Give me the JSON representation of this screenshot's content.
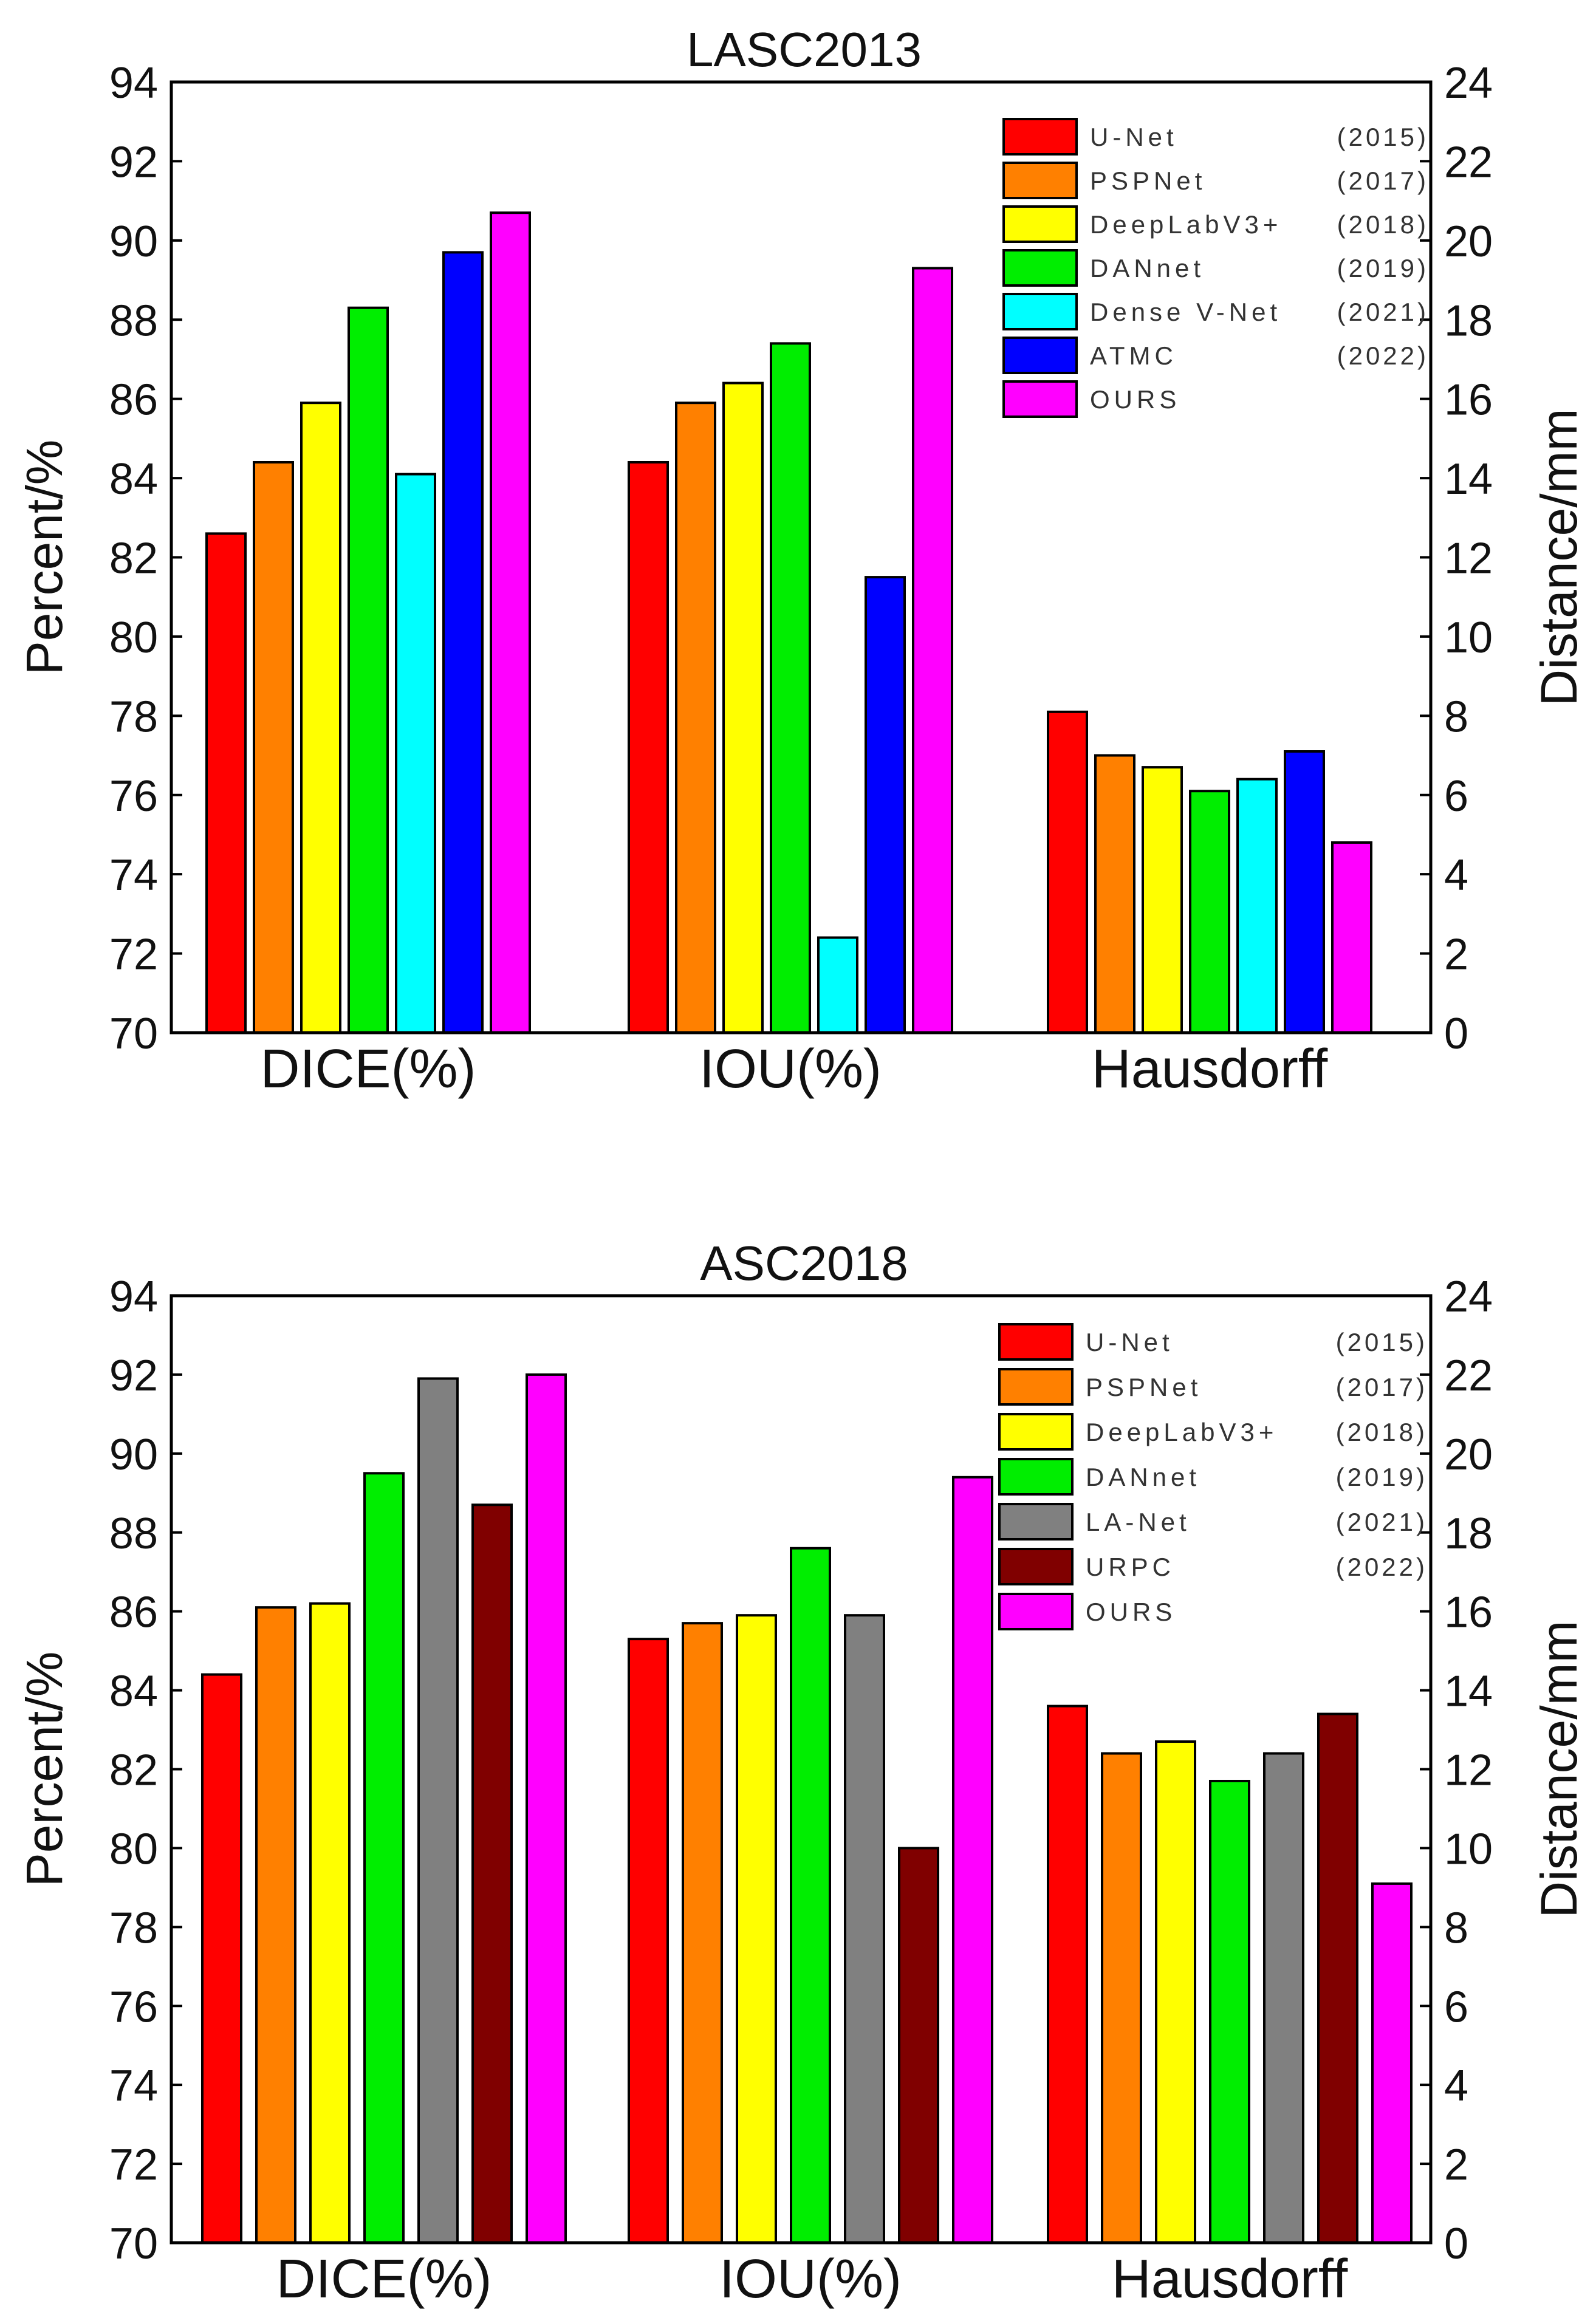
{
  "chart_data": [
    {
      "type": "bar",
      "title": "LASC2013",
      "categories": [
        "DICE(%)",
        "IOU(%)",
        "Hausdorff"
      ],
      "ylabel": "Percent/%",
      "y2label": "Distance/mm",
      "ylim": [
        70,
        94
      ],
      "y2lim": [
        0,
        24
      ],
      "yticks": [
        "70",
        "72",
        "74",
        "76",
        "78",
        "80",
        "82",
        "84",
        "86",
        "88",
        "90",
        "92",
        "94"
      ],
      "y2ticks": [
        "0",
        "2",
        "4",
        "6",
        "8",
        "10",
        "12",
        "14",
        "16",
        "18",
        "20",
        "22",
        "24"
      ],
      "grid": false,
      "legend_position": "top-right",
      "axis_for_category": [
        "left",
        "left",
        "right"
      ],
      "series": [
        {
          "name": "U-Net",
          "year": "(2015)",
          "color": "#ff0000",
          "values": [
            82.6,
            84.4,
            8.1
          ]
        },
        {
          "name": "PSPNet",
          "year": "(2017)",
          "color": "#ff8000",
          "values": [
            84.4,
            85.9,
            7.0
          ]
        },
        {
          "name": "DeepLabV3+",
          "year": "(2018)",
          "color": "#ffff00",
          "values": [
            85.9,
            86.4,
            6.7
          ]
        },
        {
          "name": "DANnet",
          "year": "(2019)",
          "color": "#00ee00",
          "values": [
            88.3,
            87.4,
            6.1
          ]
        },
        {
          "name": "Dense V-Net",
          "year": "(2021)",
          "color": "#00ffff",
          "values": [
            84.1,
            72.4,
            6.4
          ]
        },
        {
          "name": "ATMC",
          "year": "(2022)",
          "color": "#0000ff",
          "values": [
            89.7,
            81.5,
            7.1
          ]
        },
        {
          "name": "OURS",
          "year": "",
          "color": "#ff00ff",
          "values": [
            90.7,
            89.3,
            4.8
          ]
        }
      ]
    },
    {
      "type": "bar",
      "title": "ASC2018",
      "categories": [
        "DICE(%)",
        "IOU(%)",
        "Hausdorff"
      ],
      "ylabel": "Percent/%",
      "y2label": "Distance/mm",
      "ylim": [
        70,
        94
      ],
      "y2lim": [
        0,
        24
      ],
      "yticks": [
        "70",
        "72",
        "74",
        "76",
        "78",
        "80",
        "82",
        "84",
        "86",
        "88",
        "90",
        "92",
        "94"
      ],
      "y2ticks": [
        "0",
        "2",
        "4",
        "6",
        "8",
        "10",
        "12",
        "14",
        "16",
        "18",
        "20",
        "22",
        "24"
      ],
      "grid": false,
      "legend_position": "top-right",
      "axis_for_category": [
        "left",
        "left",
        "right"
      ],
      "series": [
        {
          "name": "U-Net",
          "year": "(2015)",
          "color": "#ff0000",
          "values": [
            84.4,
            85.3,
            13.6
          ]
        },
        {
          "name": "PSPNet",
          "year": "(2017)",
          "color": "#ff8000",
          "values": [
            86.1,
            85.7,
            12.4
          ]
        },
        {
          "name": "DeepLabV3+",
          "year": "(2018)",
          "color": "#ffff00",
          "values": [
            86.2,
            85.9,
            12.7
          ]
        },
        {
          "name": "DANnet",
          "year": "(2019)",
          "color": "#00ee00",
          "values": [
            89.5,
            87.6,
            11.7
          ]
        },
        {
          "name": "LA-Net",
          "year": "(2021)",
          "color": "#808080",
          "values": [
            91.9,
            85.9,
            12.4
          ]
        },
        {
          "name": "URPC",
          "year": "(2022)",
          "color": "#800000",
          "values": [
            88.7,
            80.0,
            13.4
          ]
        },
        {
          "name": "OURS",
          "year": "",
          "color": "#ff00ff",
          "values": [
            92.0,
            89.4,
            9.1
          ]
        }
      ]
    }
  ]
}
